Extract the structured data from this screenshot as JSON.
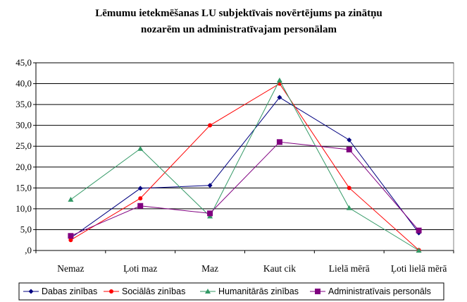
{
  "chart_data": {
    "type": "line",
    "title_lines": [
      "Lēmumu ietekmēšanas LU subjektīvais novērtējums pa zinātņu",
      "nozarēm un administratīvajam personālam"
    ],
    "xlabel": "",
    "ylabel": "",
    "categories": [
      "Nemaz",
      "Ļoti maz",
      "Maz",
      "Kaut cik",
      "Lielā mērā",
      "Ļoti lielā mērā"
    ],
    "ylim": [
      0,
      45
    ],
    "ytick_labels": [
      ",0",
      "5,0",
      "10,0",
      "15,0",
      "20,0",
      "25,0",
      "30,0",
      "35,0",
      "40,0",
      "45,0"
    ],
    "grid": "horizontal",
    "legend_position": "bottom",
    "series": [
      {
        "name": "Dabas zinības",
        "color": "#000080",
        "marker": "diamond",
        "values": [
          3.0,
          14.9,
          15.6,
          36.7,
          26.5,
          4.2
        ]
      },
      {
        "name": "Sociālās zinības",
        "color": "#ff0000",
        "marker": "circle",
        "values": [
          2.5,
          12.5,
          30.0,
          40.0,
          15.0,
          0.1
        ]
      },
      {
        "name": "Humanitārās zinības",
        "color": "#339966",
        "marker": "triangle",
        "values": [
          12.2,
          24.4,
          8.2,
          40.8,
          10.2,
          0.0
        ]
      },
      {
        "name": "Administratīvais personāls",
        "color": "#800080",
        "marker": "square",
        "values": [
          3.5,
          10.7,
          8.9,
          26.0,
          24.2,
          4.8
        ]
      }
    ]
  }
}
